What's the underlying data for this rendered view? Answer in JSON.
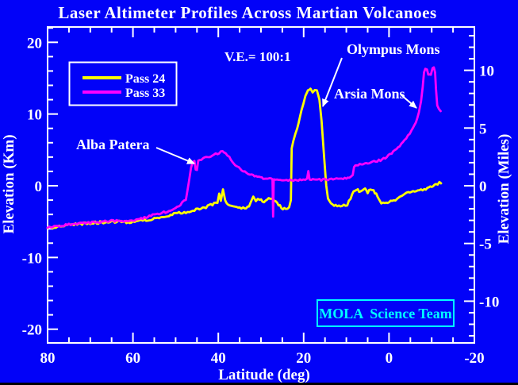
{
  "title": "Laser Altimeter Profiles Across Martian Volcanoes",
  "ve_label": "V.E.= 100:1",
  "badge": {
    "label": "MOLA  Science Team",
    "color": "#00ffff"
  },
  "legend": {
    "items": [
      {
        "label": "Pass 24",
        "color": "#ffff00"
      },
      {
        "label": "Pass 33",
        "color": "#ff00ff"
      }
    ]
  },
  "annotations": [
    {
      "label": "Olympus Mons",
      "target": "yellow Olympus Mons peak"
    },
    {
      "label": "Arsia Mons",
      "target": "magenta Arsia Mons flank"
    },
    {
      "label": "Alba Patera",
      "target": "magenta Alba Patera rise"
    }
  ],
  "colors": {
    "background": "#0202f8",
    "frame": "#ffffff",
    "pass24": "#ffff00",
    "pass33": "#ff00ff",
    "text": "#ffffff",
    "badge": "#00ffff"
  },
  "axes": {
    "x": {
      "label": "Latitude (deg)",
      "tick_values": [
        80,
        60,
        40,
        20,
        0,
        -20
      ],
      "minor_step": 5,
      "range": [
        80,
        -20
      ]
    },
    "y_left": {
      "label": "Elevation (Km)",
      "tick_values": [
        20,
        10,
        0,
        -10,
        -20
      ],
      "minor_step": 2,
      "range": [
        -21.9,
        22.1
      ]
    },
    "y_right": {
      "label": "Elevation (Miles)",
      "tick_values": [
        10,
        5,
        0,
        -5,
        -10
      ],
      "minor_step": 1,
      "range": [
        -13.6,
        13.7
      ]
    }
  },
  "chart_data": {
    "type": "line",
    "title": "Laser Altimeter Profiles Across Martian Volcanoes",
    "xlabel": "Latitude (deg)",
    "ylabel_left": "Elevation (Km)",
    "ylabel_right": "Elevation (Miles)",
    "x_range": [
      80,
      -20
    ],
    "y_range_km": [
      -21.9,
      22.1
    ],
    "grid": false,
    "legend_position": "upper-left",
    "vertical_exaggeration": "100:1",
    "series": [
      {
        "name": "Pass 24",
        "color": "#ffff00",
        "noise": 1.5,
        "points_lat_km": [
          [
            80,
            -5.9
          ],
          [
            75,
            -5.45
          ],
          [
            70,
            -5.2
          ],
          [
            65,
            -5.0
          ],
          [
            60,
            -5.1
          ],
          [
            55,
            -4.6
          ],
          [
            52,
            -4.2
          ],
          [
            50,
            -3.9
          ],
          [
            48,
            -3.7
          ],
          [
            46,
            -3.5
          ],
          [
            44,
            -3.15
          ],
          [
            42.5,
            -2.9
          ],
          [
            41,
            -2.5
          ],
          [
            40.2,
            -2.3
          ],
          [
            39.8,
            -1.1
          ],
          [
            39.4,
            -2.1
          ],
          [
            38.9,
            -0.5
          ],
          [
            38.4,
            -2.0
          ],
          [
            37.8,
            -2.5
          ],
          [
            36.5,
            -2.9
          ],
          [
            35,
            -3.1
          ],
          [
            33.8,
            -3.15
          ],
          [
            32.8,
            -2.8
          ],
          [
            31.8,
            -1.6
          ],
          [
            31.2,
            -2.1
          ],
          [
            30.3,
            -1.8
          ],
          [
            29.3,
            -2.2
          ],
          [
            28.2,
            -1.6
          ],
          [
            27.2,
            -1.9
          ],
          [
            26.2,
            -2.4
          ],
          [
            25.2,
            -3.1
          ],
          [
            24.2,
            -3.3
          ],
          [
            23.4,
            -3.0
          ],
          [
            23.0,
            -2.0
          ],
          [
            22.8,
            5.2
          ],
          [
            22.4,
            6.3
          ],
          [
            21.5,
            8.0
          ],
          [
            20.5,
            10.5
          ],
          [
            19.6,
            12.5
          ],
          [
            19.0,
            13.3
          ],
          [
            18.4,
            13.45
          ],
          [
            17.9,
            13.0
          ],
          [
            17.4,
            13.35
          ],
          [
            16.9,
            13.3
          ],
          [
            16.3,
            12.0
          ],
          [
            15.8,
            9.0
          ],
          [
            15.2,
            4.0
          ],
          [
            14.7,
            0.0
          ],
          [
            14.3,
            -1.8
          ],
          [
            13.6,
            -2.5
          ],
          [
            12.5,
            -2.75
          ],
          [
            11.0,
            -2.8
          ],
          [
            9.8,
            -2.6
          ],
          [
            9.0,
            -1.8
          ],
          [
            8.3,
            -0.7
          ],
          [
            7.6,
            -0.45
          ],
          [
            7.0,
            -0.8
          ],
          [
            6.2,
            -0.5
          ],
          [
            5.6,
            -0.35
          ],
          [
            5.0,
            -0.9
          ],
          [
            4.3,
            -0.55
          ],
          [
            3.6,
            -0.75
          ],
          [
            3.0,
            -1.1
          ],
          [
            2.4,
            -1.9
          ],
          [
            1.8,
            -2.4
          ],
          [
            1.0,
            -2.55
          ],
          [
            0.0,
            -2.3
          ],
          [
            -1.5,
            -1.95
          ],
          [
            -3.0,
            -1.4
          ],
          [
            -4.5,
            -1.0
          ],
          [
            -6.0,
            -0.7
          ],
          [
            -7.5,
            -0.55
          ],
          [
            -9.0,
            -0.35
          ],
          [
            -10.0,
            -0.1
          ],
          [
            -11.0,
            0.2
          ],
          [
            -12.2,
            0.45
          ]
        ]
      },
      {
        "name": "Pass 33",
        "color": "#ff00ff",
        "noise": 1.2,
        "points_lat_km": [
          [
            80,
            -5.85
          ],
          [
            75,
            -5.4
          ],
          [
            70,
            -5.15
          ],
          [
            65,
            -4.9
          ],
          [
            60,
            -4.9
          ],
          [
            55,
            -4.05
          ],
          [
            52,
            -3.6
          ],
          [
            50,
            -3.1
          ],
          [
            48.5,
            -2.4
          ],
          [
            47.6,
            -1.9
          ],
          [
            46.9,
            0.5
          ],
          [
            46.4,
            2.5
          ],
          [
            46.0,
            3.3
          ],
          [
            45.6,
            3.45
          ],
          [
            45.3,
            2.25
          ],
          [
            45.0,
            2.2
          ],
          [
            44.7,
            3.5
          ],
          [
            44.0,
            3.7
          ],
          [
            42.5,
            4.0
          ],
          [
            41.0,
            4.3
          ],
          [
            39.8,
            4.6
          ],
          [
            39.0,
            4.85
          ],
          [
            38.3,
            4.6
          ],
          [
            37.4,
            4.0
          ],
          [
            36.4,
            3.2
          ],
          [
            35.2,
            2.5
          ],
          [
            33.8,
            1.9
          ],
          [
            32.2,
            1.5
          ],
          [
            30.5,
            1.2
          ],
          [
            28.8,
            1.0
          ],
          [
            27.6,
            0.95
          ],
          [
            27.3,
            0.9
          ],
          [
            27.15,
            -4.3
          ],
          [
            27.0,
            0.9
          ],
          [
            25.5,
            0.85
          ],
          [
            24.0,
            0.8
          ],
          [
            22.0,
            0.8
          ],
          [
            20.5,
            0.8
          ],
          [
            19.2,
            0.85
          ],
          [
            18.9,
            2.05
          ],
          [
            18.6,
            0.85
          ],
          [
            17.5,
            0.8
          ],
          [
            15.5,
            0.85
          ],
          [
            13.5,
            0.95
          ],
          [
            11.5,
            1.0
          ],
          [
            10.0,
            1.1
          ],
          [
            9.0,
            1.2
          ],
          [
            8.5,
            1.5
          ],
          [
            8.2,
            2.6
          ],
          [
            7.6,
            2.9
          ],
          [
            6.5,
            3.0
          ],
          [
            5.0,
            3.15
          ],
          [
            3.5,
            3.4
          ],
          [
            2.0,
            3.55
          ],
          [
            0.5,
            4.0
          ],
          [
            -1.0,
            4.75
          ],
          [
            -2.5,
            5.6
          ],
          [
            -4.0,
            6.6
          ],
          [
            -5.3,
            7.7
          ],
          [
            -6.3,
            8.9
          ],
          [
            -7.0,
            10.2
          ],
          [
            -7.5,
            11.8
          ],
          [
            -7.9,
            13.8
          ],
          [
            -8.2,
            15.8
          ],
          [
            -8.5,
            16.3
          ],
          [
            -8.9,
            16.2
          ],
          [
            -9.2,
            15.5
          ],
          [
            -9.8,
            15.4
          ],
          [
            -10.2,
            16.4
          ],
          [
            -10.5,
            16.5
          ],
          [
            -10.8,
            15.8
          ],
          [
            -11.0,
            13.5
          ],
          [
            -11.3,
            11.2
          ],
          [
            -11.7,
            10.7
          ],
          [
            -12.1,
            10.4
          ]
        ]
      }
    ]
  }
}
